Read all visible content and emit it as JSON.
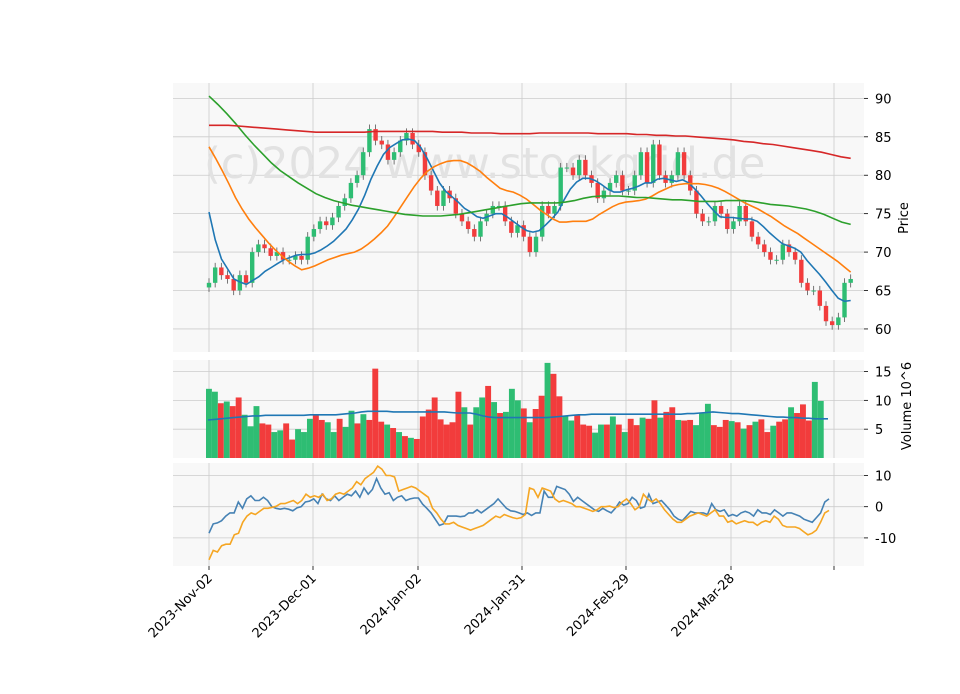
{
  "watermark": "(c)2024 www.stockgrid.de",
  "colors": {
    "up": "#2ebd73",
    "down": "#f23c3c",
    "ma_short": "#1f77b4",
    "ma_medium": "#ff7f0e",
    "ma_long": "#2ca02c",
    "ma_longest": "#d62728",
    "volume_ma": "#1f77b4",
    "osc_line1": "#4682b4",
    "osc_line2": "#f5a623",
    "panel_bg": "#f8f8f8",
    "grid": "#cccccc",
    "watermark": "#e2e2e2"
  },
  "chart_data": [
    {
      "type": "candlestick",
      "panel": "price",
      "ylabel": "Price",
      "ylim": [
        57,
        92
      ],
      "yticks": [
        60,
        65,
        70,
        75,
        80,
        85,
        90
      ],
      "x_tick_labels": [
        "2023-Nov-02",
        "2023-Dec-01",
        "2024-Jan-02",
        "2024-Jan-31",
        "2024-Feb-29",
        "2024-Mar-28"
      ],
      "grid": true,
      "series": [
        {
          "kind": "close",
          "values": [
            66,
            68,
            67,
            66.5,
            65,
            67,
            66,
            70,
            71,
            70.5,
            69.5,
            70,
            69,
            69,
            69.5,
            69,
            72,
            73,
            74,
            73.5,
            74.5,
            76,
            77,
            79,
            80,
            83,
            86,
            84.5,
            84,
            82,
            83,
            84.5,
            85.5,
            84,
            83,
            80,
            78,
            76,
            78,
            77,
            75,
            74,
            73,
            72,
            74,
            75,
            76,
            76,
            74,
            72.5,
            73.5,
            72,
            70,
            72,
            76,
            75,
            76,
            81,
            81,
            80,
            82,
            80,
            79,
            77,
            78,
            79,
            80,
            78,
            78,
            80,
            83,
            79,
            84,
            80,
            79,
            80,
            83,
            80,
            78,
            75,
            74,
            74,
            76,
            75,
            73,
            74,
            76,
            74,
            72,
            71,
            70,
            69,
            69,
            71,
            70,
            69,
            66,
            65,
            65,
            63,
            61,
            60.5,
            61.5,
            66,
            66.5
          ]
        },
        {
          "kind": "ma",
          "name": "",
          "window": "short",
          "x_offset": 0,
          "values": [
            75.2,
            71.6,
            69.1,
            67.8,
            66.5,
            66.1,
            65.8,
            66.3,
            66.8,
            67.5,
            68.0,
            68.5,
            69.0,
            69.3,
            69.6,
            69.7,
            69.7,
            69.9,
            70.3,
            70.8,
            71.4,
            72.2,
            73.0,
            74.2,
            75.6,
            77.4,
            79.5,
            81.2,
            82.7,
            83.6,
            84.1,
            84.6,
            84.7,
            84.5,
            83.6,
            82.2,
            80.6,
            79.0,
            77.9,
            77.2,
            76.5,
            75.7,
            75.2,
            74.6,
            74.4,
            74.7,
            75.0,
            75.0,
            74.5,
            73.9,
            73.3,
            72.8,
            72.6,
            72.8,
            73.5,
            74.3,
            75.2,
            76.8,
            78.2,
            79.1,
            79.6,
            79.6,
            79.3,
            78.8,
            78.2,
            77.8,
            77.8,
            78.1,
            78.3,
            78.6,
            79.0,
            79.0,
            79.5,
            79.6,
            79.4,
            79.2,
            79.4,
            79.0,
            78.2,
            77.3,
            76.3,
            75.4,
            74.6,
            74.5,
            74.5,
            74.4,
            74.3,
            74.3,
            74.0,
            73.3,
            72.5,
            71.8,
            71.1,
            70.8,
            70.5,
            70.0,
            68.9,
            68.0,
            67.1,
            66.1,
            65.0,
            64.0,
            63.6,
            63.7
          ]
        },
        {
          "kind": "ma",
          "name": "",
          "window": "medium",
          "x_offset": 0,
          "values": [
            83.7,
            82.2,
            80.6,
            78.9,
            77.1,
            75.6,
            74.3,
            73.2,
            72.2,
            71.2,
            70.3,
            69.5,
            68.8,
            68.2,
            67.7,
            67.9,
            68.2,
            68.6,
            69.0,
            69.3,
            69.6,
            69.8,
            70.0,
            70.4,
            71.0,
            71.7,
            72.5,
            73.4,
            74.6,
            75.9,
            77.2,
            78.5,
            79.6,
            80.5,
            81.1,
            81.5,
            81.8,
            81.9,
            81.9,
            81.6,
            81.1,
            80.5,
            79.7,
            79.0,
            78.3,
            78.0,
            77.8,
            77.4,
            76.9,
            76.2,
            75.5,
            74.9,
            74.3,
            73.9,
            73.9,
            74.0,
            74.0,
            74.0,
            74.3,
            74.9,
            75.4,
            75.9,
            76.3,
            76.5,
            76.6,
            76.7,
            76.9,
            77.3,
            77.8,
            78.2,
            78.6,
            78.8,
            78.9,
            78.9,
            78.9,
            78.8,
            78.6,
            78.3,
            77.9,
            77.4,
            76.9,
            76.4,
            76.0,
            75.6,
            75.1,
            74.6,
            74.0,
            73.4,
            72.9,
            72.4,
            71.8,
            71.2,
            70.6,
            70.0,
            69.4,
            68.8,
            68.1,
            67.4
          ]
        },
        {
          "kind": "ma",
          "name": "",
          "window": "long",
          "x_offset": 0,
          "values": [
            90.3,
            89.2,
            88.0,
            86.7,
            85.3,
            84.0,
            82.8,
            81.6,
            80.6,
            79.8,
            79.0,
            78.3,
            77.6,
            77.1,
            76.7,
            76.4,
            76.1,
            75.9,
            75.7,
            75.5,
            75.3,
            75.1,
            74.9,
            74.8,
            74.7,
            74.7,
            74.7,
            74.8,
            74.9,
            75.1,
            75.3,
            75.5,
            75.7,
            75.9,
            76.1,
            76.3,
            76.4,
            76.4,
            76.4,
            76.4,
            76.5,
            76.7,
            77.0,
            77.2,
            77.3,
            77.3,
            77.3,
            77.2,
            77.1,
            77.1,
            77.0,
            76.9,
            76.8,
            76.8,
            76.7,
            76.6,
            76.6,
            76.6,
            76.7,
            76.7,
            76.7,
            76.6,
            76.4,
            76.2,
            76.1,
            76.0,
            75.8,
            75.6,
            75.3,
            74.9,
            74.4,
            73.9,
            73.6
          ]
        },
        {
          "kind": "ma",
          "name": "",
          "window": "longest",
          "x_offset": 0,
          "values": [
            86.5,
            86.5,
            86.5,
            86.4,
            86.3,
            86.2,
            86.1,
            86.0,
            85.9,
            85.8,
            85.7,
            85.6,
            85.6,
            85.6,
            85.6,
            85.6,
            85.6,
            85.7,
            85.7,
            85.7,
            85.7,
            85.7,
            85.7,
            85.7,
            85.6,
            85.6,
            85.6,
            85.5,
            85.5,
            85.5,
            85.4,
            85.4,
            85.4,
            85.4,
            85.5,
            85.5,
            85.5,
            85.5,
            85.5,
            85.5,
            85.4,
            85.4,
            85.4,
            85.4,
            85.3,
            85.3,
            85.2,
            85.2,
            85.1,
            85.1,
            85.0,
            84.9,
            84.8,
            84.7,
            84.6,
            84.4,
            84.3,
            84.1,
            84.0,
            83.8,
            83.6,
            83.4,
            83.2,
            83.0,
            82.7,
            82.4,
            82.2
          ]
        }
      ]
    },
    {
      "type": "bar",
      "panel": "volume",
      "ylabel": "Volume  10^6",
      "ylim": [
        0,
        17
      ],
      "yticks": [
        5,
        10,
        15
      ],
      "grid": true,
      "values": [
        12,
        11.5,
        9.5,
        9.8,
        9,
        10.5,
        7.5,
        5.5,
        9,
        6,
        5.8,
        4.5,
        4.8,
        6,
        3.2,
        5,
        4.5,
        6.8,
        7.5,
        6.6,
        6.2,
        4.5,
        6.8,
        5.4,
        8.2,
        6,
        7.6,
        6.6,
        15.5,
        6.3,
        5.8,
        5.2,
        4.5,
        3.8,
        3.5,
        3.3,
        7.2,
        8.4,
        10.5,
        6.7,
        5.8,
        6.2,
        11.5,
        8.8,
        5.8,
        8.8,
        10.5,
        12.5,
        9.7,
        7.8,
        8,
        12,
        10,
        8.6,
        6.2,
        8.5,
        10.8,
        16.5,
        14.6,
        10.7,
        7.2,
        6.5,
        7.5,
        5.8,
        5.6,
        4.4,
        5.8,
        5.8,
        7.2,
        5.8,
        4.5,
        6.8,
        5.7,
        7,
        6.8,
        10,
        7,
        8,
        8.8,
        6.6,
        6.5,
        6.6,
        5.7,
        7.8,
        9.4,
        5.7,
        5.4,
        6.6,
        6.4,
        6.2,
        5.1,
        5.7,
        6.3,
        6.7,
        4.5,
        5.6,
        6.3,
        6.7,
        8.8,
        7.8,
        9.3,
        6.5,
        13.2,
        9.9
      ],
      "down_flags": [
        0,
        0,
        1,
        0,
        1,
        1,
        0,
        0,
        0,
        1,
        1,
        0,
        0,
        1,
        1,
        0,
        0,
        0,
        1,
        1,
        0,
        0,
        1,
        0,
        0,
        1,
        0,
        1,
        1,
        1,
        0,
        1,
        0,
        1,
        0,
        1,
        1,
        1,
        1,
        1,
        1,
        1,
        1,
        0,
        1,
        0,
        0,
        1,
        0,
        1,
        0,
        0,
        0,
        1,
        0,
        1,
        1,
        0,
        1,
        1,
        0,
        0,
        1,
        1,
        1,
        0,
        0,
        1,
        0,
        1,
        0,
        1,
        1,
        0,
        1,
        1,
        0,
        1,
        1,
        0,
        1,
        1,
        0,
        0,
        0,
        1,
        1,
        1,
        0,
        1,
        0,
        1,
        0,
        1,
        1,
        0,
        1,
        1,
        0,
        1,
        1,
        1,
        0,
        0
      ],
      "ma_values": [
        6.6,
        6.7,
        6.8,
        6.9,
        7.0,
        7.1,
        7.2,
        7.3,
        7.3,
        7.4,
        7.4,
        7.4,
        7.4,
        7.4,
        7.4,
        7.4,
        7.5,
        7.5,
        7.5,
        7.5,
        7.5,
        7.6,
        7.7,
        7.8,
        8.0,
        8.1,
        8.1,
        8.1,
        8.1,
        8.0,
        8.0,
        8.0,
        8.0,
        8.0,
        8.0,
        8.0,
        8.0,
        8.0,
        7.9,
        7.8,
        7.8,
        7.8,
        7.6,
        7.3,
        7.1,
        7.0,
        7.0,
        7.0,
        7.0,
        7.0,
        7.0,
        7.0,
        7.0,
        7.0,
        7.1,
        7.2,
        7.3,
        7.4,
        7.5,
        7.5,
        7.6,
        7.6,
        7.6,
        7.6,
        7.6,
        7.6,
        7.6,
        7.6,
        7.6,
        7.6,
        7.6,
        7.6,
        7.6,
        7.6,
        7.6,
        7.7,
        7.7,
        7.8,
        7.9,
        8.0,
        7.9,
        7.8,
        7.7,
        7.7,
        7.6,
        7.5,
        7.4,
        7.3,
        7.2,
        7.1,
        7.1,
        7.0,
        7.0,
        6.9,
        6.9,
        6.8,
        6.8,
        6.8
      ]
    },
    {
      "type": "line",
      "panel": "oscillator",
      "ylim": [
        -19,
        14
      ],
      "yticks": [
        -10,
        0,
        10
      ],
      "grid": true,
      "series": [
        {
          "name": "",
          "values": [
            -8.5,
            -5.5,
            -5.2,
            -4.5,
            -3,
            -2,
            -2,
            1.5,
            -0.5,
            2.5,
            3.5,
            2,
            2,
            3,
            2,
            0,
            -0.5,
            -0.8,
            -0.5,
            -0.8,
            -1.3,
            -0.4,
            0,
            1.5,
            1.8,
            2.5,
            1,
            4,
            2.5,
            2,
            3.5,
            2,
            3,
            4,
            3.5,
            5,
            3,
            6,
            4,
            5.5,
            9,
            6,
            4,
            4.5,
            2,
            3,
            3.5,
            2,
            2.5,
            2.8,
            2.8,
            0.8,
            -0.5,
            -2,
            -4,
            -6,
            -5.5,
            -3,
            -3,
            -3,
            -3.2,
            -3,
            -2,
            -2,
            -1,
            -2,
            -1,
            0,
            1,
            2.5,
            1,
            -0.5,
            -1.3,
            -1.5,
            -2,
            -2.5,
            -2,
            -2.8,
            -2,
            -2,
            5,
            3,
            3,
            6.5,
            6,
            5.5,
            4,
            1.7,
            3,
            2,
            1,
            0,
            -1,
            -1.5,
            -0.5,
            -1.3,
            -2,
            -0.5,
            1.5,
            0.5,
            1,
            3,
            2,
            -0.5,
            0,
            4,
            1,
            1.5,
            2,
            0.5,
            -1,
            -3,
            -4,
            -4.5,
            -3,
            -1.5,
            -2,
            -2,
            -2,
            -2.5,
            1,
            -1,
            -1.5,
            -1,
            -3,
            -2.5,
            -3,
            -2,
            -1.5,
            -2,
            -3,
            -1,
            -2,
            -2,
            -2.5,
            -1,
            -2,
            -3,
            -2,
            -2,
            -2.5,
            -3,
            -4,
            -4.5,
            -5,
            -3.5,
            -2,
            1.5,
            2.5
          ]
        },
        {
          "name": "",
          "values": [
            -17,
            -14,
            -14.5,
            -12.5,
            -12,
            -12,
            -9,
            -8.5,
            -5,
            -3,
            -2,
            -2.5,
            -1.5,
            -0.5,
            -0.5,
            -0.2,
            0.2,
            1,
            1,
            1.5,
            2,
            1,
            2,
            4,
            3,
            3.5,
            3,
            4,
            2,
            2.5,
            4,
            4.5,
            4,
            5,
            6,
            8,
            7,
            9,
            10,
            11,
            13,
            12,
            10,
            10,
            9.5,
            5,
            5.5,
            6,
            6.5,
            6,
            5,
            4,
            3,
            -0.5,
            -2,
            -4,
            -5.5,
            -5.5,
            -5,
            -6,
            -6.5,
            -7,
            -7.5,
            -7,
            -6.5,
            -6,
            -5,
            -4,
            -3,
            -3.5,
            -2.5,
            -3,
            -3.5,
            -3.8,
            -3.5,
            -2.5,
            6,
            5.5,
            3,
            6,
            5.5,
            5,
            2.5,
            1.5,
            2,
            1.5,
            1,
            0,
            0,
            -0.5,
            -1,
            -1.5,
            -1,
            0,
            0,
            0.2,
            -0.3,
            0,
            1.5,
            2.5,
            1,
            -1,
            0,
            4,
            2.5,
            1.5,
            2.5,
            1,
            -1,
            -2.5,
            -4,
            -5,
            -5,
            -4,
            -3,
            -2.5,
            -2,
            -2.5,
            -3,
            -2,
            -1,
            -3,
            -3,
            -5,
            -4.5,
            -5.5,
            -5,
            -4.5,
            -5,
            -5,
            -6,
            -5,
            -4.5,
            -5,
            -3,
            -4,
            -6,
            -6.5,
            -6.5,
            -6.5,
            -7,
            -8,
            -9,
            -8.5,
            -7.5,
            -5,
            -2,
            -1.2
          ]
        }
      ]
    }
  ]
}
